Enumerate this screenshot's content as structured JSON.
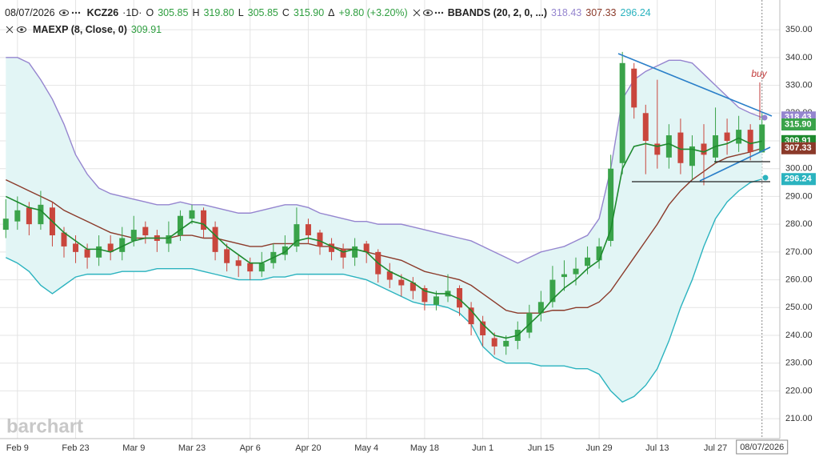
{
  "legend": {
    "date": "08/07/2026",
    "symbol": "KCZ26",
    "interval": "·1D·",
    "open_key": "O",
    "open": "305.85",
    "high_key": "H",
    "high": "319.80",
    "low_key": "L",
    "low": "305.85",
    "close_key": "C",
    "close": "315.90",
    "change_key": "Δ",
    "change": "+9.80 (+3.20%)",
    "bbands": "BBANDS (20, 2, 0, ...)",
    "bb_upper": "318.43",
    "bb_middle": "307.33",
    "bb_lower": "296.24",
    "maexp": "MAEXP (8, Close, 0)",
    "ema_value": "309.91"
  },
  "watermark": "barchart",
  "chart_data": {
    "type": "candlestick",
    "categories": [
      null,
      "Feb 9",
      null,
      null,
      null,
      null,
      "Feb 23",
      null,
      null,
      null,
      null,
      "Mar 9",
      null,
      null,
      null,
      null,
      "Mar 23",
      null,
      null,
      null,
      null,
      "Apr 6",
      null,
      null,
      null,
      null,
      "Apr 20",
      null,
      null,
      null,
      null,
      "May 4",
      null,
      null,
      null,
      null,
      "May 18",
      null,
      null,
      null,
      null,
      "Jun 1",
      null,
      null,
      null,
      null,
      "Jun 15",
      null,
      null,
      null,
      null,
      "Jun 29",
      null,
      null,
      null,
      null,
      "Jul 13",
      null,
      null,
      null,
      null,
      "Jul 27",
      null,
      null,
      null,
      "08/07/2026"
    ],
    "candles": {
      "open": [
        278,
        281,
        286,
        280,
        286,
        277,
        273,
        271,
        268,
        273,
        270,
        274,
        279,
        276,
        273,
        276,
        282,
        285,
        279,
        271,
        267,
        266,
        263,
        266,
        269,
        272,
        280,
        277,
        273,
        271,
        268,
        273,
        270,
        263,
        260,
        259,
        257,
        251,
        254,
        257,
        250,
        245,
        239,
        236,
        238,
        241,
        248,
        252,
        261,
        262,
        265,
        267,
        274,
        302,
        336,
        320,
        309,
        304,
        313,
        301,
        309,
        304,
        313,
        309,
        314,
        305.85
      ],
      "high": [
        289,
        290,
        288,
        292,
        288,
        279,
        276,
        273,
        276,
        276,
        279,
        283,
        281,
        278,
        281,
        285,
        287,
        286,
        281,
        273,
        269,
        268,
        270,
        273,
        276,
        286,
        282,
        278,
        275,
        273,
        275,
        274,
        271,
        266,
        262,
        261,
        258,
        256,
        262,
        258,
        252,
        247,
        241,
        240,
        245,
        251,
        256,
        265,
        267,
        268,
        272,
        275,
        305,
        342,
        338,
        323,
        332,
        316,
        318,
        312,
        316,
        322,
        318,
        319,
        316,
        319.8
      ],
      "low": [
        275,
        278,
        276,
        278,
        272,
        268,
        266,
        264,
        265,
        267,
        267,
        272,
        273,
        270,
        270,
        274,
        280,
        275,
        267,
        263,
        261,
        260,
        261,
        264,
        267,
        270,
        273,
        269,
        267,
        264,
        265,
        266,
        259,
        257,
        254,
        253,
        249,
        249,
        252,
        247,
        240,
        236,
        233,
        233,
        235,
        239,
        245,
        250,
        256,
        258,
        262,
        264,
        272,
        298,
        318,
        298,
        300,
        300,
        298,
        296,
        294,
        302,
        305,
        306,
        303,
        305.85
      ],
      "close": [
        282,
        285,
        280,
        287,
        276,
        272,
        270,
        268,
        272,
        270,
        275,
        278,
        276,
        274,
        276,
        283,
        285,
        278,
        270,
        266,
        265,
        263,
        266,
        270,
        272,
        280,
        276,
        272,
        270,
        268,
        272,
        270,
        262,
        260,
        258,
        256,
        252,
        254,
        256,
        250,
        244,
        240,
        236,
        238,
        242,
        248,
        252,
        260,
        262,
        264,
        268,
        272,
        300,
        338,
        322,
        310,
        305,
        312,
        302,
        308,
        305,
        312,
        310,
        314,
        306,
        315.9
      ]
    },
    "up_color": "#3aa34a",
    "down_color": "#c9463d",
    "bands": {
      "upper": [
        340,
        340,
        338,
        332,
        325,
        316,
        305,
        298,
        293,
        291,
        290,
        289,
        288,
        287,
        287,
        288,
        287,
        287,
        286,
        285,
        284,
        284,
        285,
        286,
        287,
        287,
        286,
        284,
        283,
        282,
        281,
        281,
        280,
        280,
        280,
        279,
        278,
        277,
        276,
        275,
        274,
        272,
        270,
        268,
        266,
        268,
        270,
        271,
        272,
        274,
        276,
        282,
        300,
        325,
        332,
        335,
        337,
        339,
        339,
        338,
        334,
        330,
        326,
        322,
        320,
        318.43
      ],
      "middle": [
        296,
        294,
        292,
        290,
        288,
        285,
        283,
        281,
        279,
        277,
        276,
        275,
        275,
        275,
        275,
        276,
        276,
        275,
        275,
        274,
        273,
        272,
        272,
        273,
        273,
        273,
        273,
        272,
        272,
        271,
        271,
        270,
        269,
        268,
        267,
        265,
        263,
        262,
        261,
        260,
        258,
        255,
        252,
        249,
        248,
        248,
        248,
        249,
        249,
        250,
        250,
        252,
        256,
        262,
        268,
        274,
        280,
        287,
        292,
        296,
        299,
        302,
        304,
        305,
        306,
        307.33
      ],
      "lower": [
        268,
        266,
        263,
        258,
        255,
        258,
        261,
        262,
        262,
        262,
        263,
        263,
        263,
        264,
        264,
        264,
        264,
        263,
        262,
        261,
        260,
        260,
        260,
        261,
        261,
        262,
        262,
        262,
        262,
        262,
        261,
        260,
        258,
        256,
        254,
        252,
        251,
        251,
        250,
        248,
        244,
        236,
        232,
        230,
        230,
        230,
        229,
        229,
        229,
        228,
        228,
        226,
        220,
        216,
        218,
        222,
        228,
        238,
        250,
        260,
        272,
        282,
        288,
        292,
        295,
        296.24
      ],
      "upper_color": "#9585cf",
      "middle_color": "#8b3a2a",
      "lower_color": "#2bb3bf",
      "fill": "#e2f5f5"
    },
    "ema": {
      "values": [
        290,
        288,
        286,
        285,
        281,
        277,
        274,
        271,
        271,
        270,
        272,
        274,
        275,
        275,
        275,
        278,
        281,
        280,
        276,
        272,
        269,
        266,
        266,
        268,
        270,
        274,
        275,
        274,
        272,
        270,
        271,
        270,
        266,
        263,
        261,
        259,
        256,
        255,
        255,
        253,
        249,
        244,
        240,
        239,
        240,
        244,
        248,
        253,
        257,
        260,
        264,
        267,
        278,
        300,
        308,
        309,
        308,
        309,
        307,
        307,
        306,
        308,
        309,
        311,
        309,
        309.91
      ],
      "color": "#1e8a2e"
    },
    "ylim": [
      203.7,
      360.7
    ],
    "yticks": [
      {
        "value": 210,
        "label": "210.00"
      },
      {
        "value": 220,
        "label": "220.00"
      },
      {
        "value": 230,
        "label": "230.00"
      },
      {
        "value": 240,
        "label": "240.00"
      },
      {
        "value": 250,
        "label": "250.00"
      },
      {
        "value": 260,
        "label": "260.00"
      },
      {
        "value": 270,
        "label": "270.00"
      },
      {
        "value": 280,
        "label": "280.00"
      },
      {
        "value": 290,
        "label": "290.00"
      },
      {
        "value": 300,
        "label": "300.00"
      },
      {
        "value": 310,
        "label": "310.00"
      },
      {
        "value": 320,
        "label": "320.00"
      },
      {
        "value": 330,
        "label": "330.00"
      },
      {
        "value": 340,
        "label": "340.00"
      },
      {
        "value": 350,
        "label": "350.00"
      }
    ],
    "grid": true,
    "annotation": "buy"
  }
}
